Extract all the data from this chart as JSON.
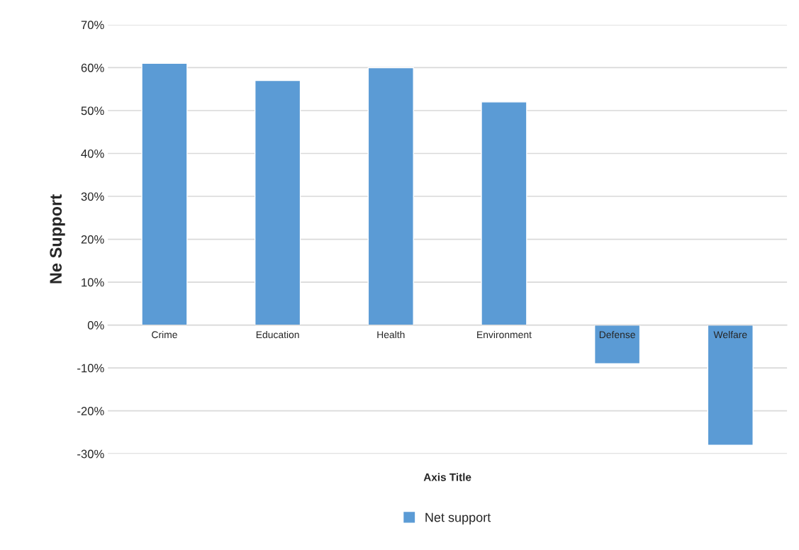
{
  "chart_data": {
    "type": "bar",
    "xlabel": "Axis Title",
    "ylabel": "Ne Support",
    "categories": [
      "Crime",
      "Education",
      "Health",
      "Environment",
      "Defense",
      "Welfare"
    ],
    "series": [
      {
        "name": "Net support",
        "color": "#5b9bd5",
        "values": [
          61,
          57,
          60,
          52,
          -9,
          -28
        ]
      }
    ],
    "ylim": [
      -30,
      70
    ],
    "yticks": [
      {
        "value": -30,
        "label": "-30%"
      },
      {
        "value": -20,
        "label": "-20%"
      },
      {
        "value": -10,
        "label": "-10%"
      },
      {
        "value": 0,
        "label": "0%"
      },
      {
        "value": 10,
        "label": "10%"
      },
      {
        "value": 20,
        "label": "20%"
      },
      {
        "value": 30,
        "label": "30%"
      },
      {
        "value": 40,
        "label": "40%"
      },
      {
        "value": 50,
        "label": "50%"
      },
      {
        "value": 60,
        "label": "60%"
      },
      {
        "value": 70,
        "label": "70%"
      }
    ],
    "grid": "y",
    "legend": "bottom"
  }
}
